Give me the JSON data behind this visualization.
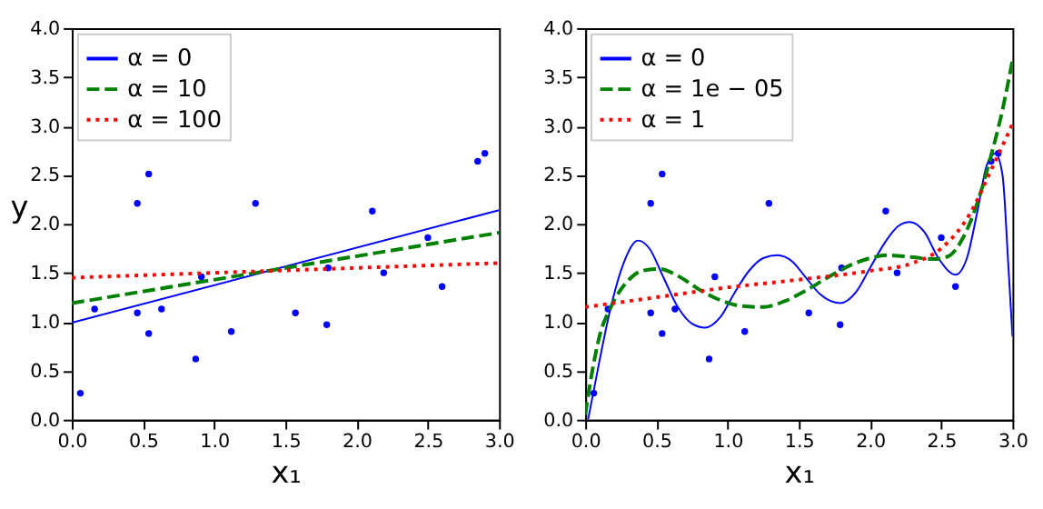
{
  "chart_data": [
    {
      "type": "line",
      "xlabel": "x₁",
      "ylabel": "y",
      "xlim": [
        0,
        3
      ],
      "ylim": [
        0,
        4
      ],
      "xticks": [
        {
          "value": 0,
          "label": "0.0"
        },
        0.5,
        {
          "value": 1,
          "label": "1.0"
        },
        1.5,
        {
          "value": 2,
          "label": "2.0"
        },
        2.5,
        {
          "value": 3,
          "label": "3.0"
        }
      ],
      "yticks": [
        {
          "value": 0,
          "label": "0.0"
        },
        0.5,
        {
          "value": 1,
          "label": "1.0"
        },
        1.5,
        {
          "value": 2,
          "label": "2.0"
        },
        2.5,
        {
          "value": 3,
          "label": "3.0"
        },
        3.5,
        {
          "value": 4,
          "label": "4.0"
        }
      ],
      "grid": false,
      "legend": "top left",
      "series": [
        {
          "type": "scatter",
          "color": "#0000ff",
          "marker": "circle",
          "x": [
            0.06,
            0.16,
            0.46,
            0.46,
            0.54,
            0.54,
            0.63,
            0.87,
            0.91,
            1.12,
            1.29,
            1.57,
            1.79,
            1.8,
            2.11,
            2.19,
            2.5,
            2.6,
            2.85,
            2.9
          ],
          "values": [
            0.27,
            1.13,
            2.21,
            1.09,
            2.51,
            0.88,
            1.13,
            0.62,
            1.46,
            0.9,
            2.21,
            1.09,
            0.97,
            1.55,
            2.13,
            1.5,
            1.86,
            1.36,
            2.64,
            2.72
          ]
        },
        {
          "type": "line",
          "name": "α = 0",
          "color": "#0000ff",
          "line_style": "solid",
          "x": [
            0,
            3
          ],
          "values": [
            0.99,
            2.14
          ]
        },
        {
          "type": "line",
          "name": "α = 10",
          "color": "#008000",
          "line_style": "dashed",
          "x": [
            0,
            3
          ],
          "values": [
            1.19,
            1.91
          ]
        },
        {
          "type": "line",
          "name": "α = 100",
          "color": "#ff0000",
          "line_style": "dotted",
          "x": [
            0,
            3
          ],
          "values": [
            1.45,
            1.6
          ]
        }
      ]
    },
    {
      "type": "line",
      "xlabel": "x₁",
      "xlim": [
        0,
        3
      ],
      "ylim": [
        0,
        4
      ],
      "xticks": [
        {
          "value": 0,
          "label": "0.0"
        },
        0.5,
        {
          "value": 1,
          "label": "1.0"
        },
        1.5,
        {
          "value": 2,
          "label": "2.0"
        },
        2.5,
        {
          "value": 3,
          "label": "3.0"
        }
      ],
      "yticks": [
        {
          "value": 0,
          "label": "0.0"
        },
        0.5,
        {
          "value": 1,
          "label": "1.0"
        },
        1.5,
        {
          "value": 2,
          "label": "2.0"
        },
        2.5,
        {
          "value": 3,
          "label": "3.0"
        },
        3.5,
        {
          "value": 4,
          "label": "4.0"
        }
      ],
      "grid": false,
      "legend": "top left",
      "series": [
        {
          "type": "scatter",
          "color": "#0000ff",
          "marker": "circle",
          "x": [
            0.06,
            0.16,
            0.46,
            0.46,
            0.54,
            0.54,
            0.63,
            0.87,
            0.91,
            1.12,
            1.29,
            1.57,
            1.79,
            1.8,
            2.11,
            2.19,
            2.5,
            2.6,
            2.85,
            2.9
          ],
          "values": [
            0.27,
            1.13,
            2.21,
            1.09,
            2.51,
            0.88,
            1.13,
            0.62,
            1.46,
            0.9,
            2.21,
            1.09,
            0.97,
            1.55,
            2.13,
            1.5,
            1.86,
            1.36,
            2.64,
            2.72
          ]
        },
        {
          "type": "line",
          "name": "α = 0",
          "color": "#0000ff",
          "line_style": "solid",
          "x": [
            0.02,
            0.1,
            0.18,
            0.27,
            0.37,
            0.45,
            0.55,
            0.65,
            0.75,
            0.84,
            0.95,
            1.05,
            1.15,
            1.25,
            1.35,
            1.45,
            1.55,
            1.65,
            1.79,
            1.9,
            2.0,
            2.1,
            2.2,
            2.28,
            2.38,
            2.48,
            2.6,
            2.68,
            2.75,
            2.82,
            2.88,
            2.93,
            2.97,
            3.0
          ],
          "values": [
            0,
            0.6,
            1.15,
            1.6,
            1.83,
            1.75,
            1.45,
            1.15,
            0.98,
            0.94,
            1.05,
            1.3,
            1.52,
            1.65,
            1.68,
            1.62,
            1.45,
            1.28,
            1.19,
            1.3,
            1.55,
            1.8,
            1.98,
            2.02,
            1.92,
            1.65,
            1.48,
            1.65,
            2.1,
            2.6,
            2.72,
            2.5,
            1.6,
            0.85
          ]
        },
        {
          "type": "line",
          "name": "α = 1e − 05",
          "color": "#008000",
          "line_style": "dashed",
          "x": [
            0,
            0.05,
            0.1,
            0.18,
            0.3,
            0.4,
            0.52,
            0.65,
            0.8,
            0.95,
            1.1,
            1.25,
            1.4,
            1.55,
            1.7,
            1.85,
            2.0,
            2.12,
            2.3,
            2.45,
            2.55,
            2.65,
            2.75,
            2.85,
            2.92,
            3.0
          ],
          "values": [
            0.05,
            0.5,
            0.85,
            1.15,
            1.42,
            1.52,
            1.54,
            1.47,
            1.33,
            1.22,
            1.16,
            1.15,
            1.21,
            1.32,
            1.45,
            1.57,
            1.65,
            1.68,
            1.66,
            1.64,
            1.67,
            1.85,
            2.2,
            2.7,
            3.1,
            3.67
          ]
        },
        {
          "type": "line",
          "name": "α = 1",
          "color": "#ff0000",
          "line_style": "dotted",
          "x": [
            0,
            0.5,
            1.0,
            1.5,
            2.0,
            2.3,
            2.5,
            2.7,
            2.85,
            3.0
          ],
          "values": [
            1.15,
            1.25,
            1.35,
            1.43,
            1.52,
            1.6,
            1.75,
            2.1,
            2.55,
            3.02
          ]
        }
      ]
    }
  ]
}
